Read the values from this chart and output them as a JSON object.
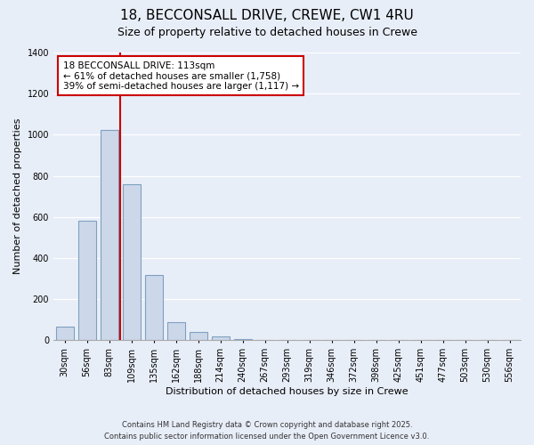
{
  "title": "18, BECCONSALL DRIVE, CREWE, CW1 4RU",
  "subtitle": "Size of property relative to detached houses in Crewe",
  "xlabel": "Distribution of detached houses by size in Crewe",
  "ylabel": "Number of detached properties",
  "categories": [
    "30sqm",
    "56sqm",
    "83sqm",
    "109sqm",
    "135sqm",
    "162sqm",
    "188sqm",
    "214sqm",
    "240sqm",
    "267sqm",
    "293sqm",
    "319sqm",
    "346sqm",
    "372sqm",
    "398sqm",
    "425sqm",
    "451sqm",
    "477sqm",
    "503sqm",
    "530sqm",
    "556sqm"
  ],
  "values": [
    67,
    580,
    1022,
    760,
    320,
    90,
    40,
    18,
    5,
    0,
    0,
    0,
    0,
    0,
    0,
    0,
    0,
    0,
    0,
    0,
    0
  ],
  "bar_color": "#ccd8ea",
  "bar_edge_color": "#7fa0c0",
  "vline_color": "#cc0000",
  "vline_index": 2.5,
  "ylim": [
    0,
    1400
  ],
  "yticks": [
    0,
    200,
    400,
    600,
    800,
    1000,
    1200,
    1400
  ],
  "annotation_title": "18 BECCONSALL DRIVE: 113sqm",
  "annotation_line1": "← 61% of detached houses are smaller (1,758)",
  "annotation_line2": "39% of semi-detached houses are larger (1,117) →",
  "annotation_box_color": "#ffffff",
  "annotation_box_edge": "#cc0000",
  "footer1": "Contains HM Land Registry data © Crown copyright and database right 2025.",
  "footer2": "Contains public sector information licensed under the Open Government Licence v3.0.",
  "bg_color": "#e8eef8",
  "plot_bg_color": "#e8eef8",
  "grid_color": "#ffffff",
  "title_fontsize": 11,
  "subtitle_fontsize": 9,
  "tick_fontsize": 7,
  "ylabel_fontsize": 8,
  "xlabel_fontsize": 8
}
